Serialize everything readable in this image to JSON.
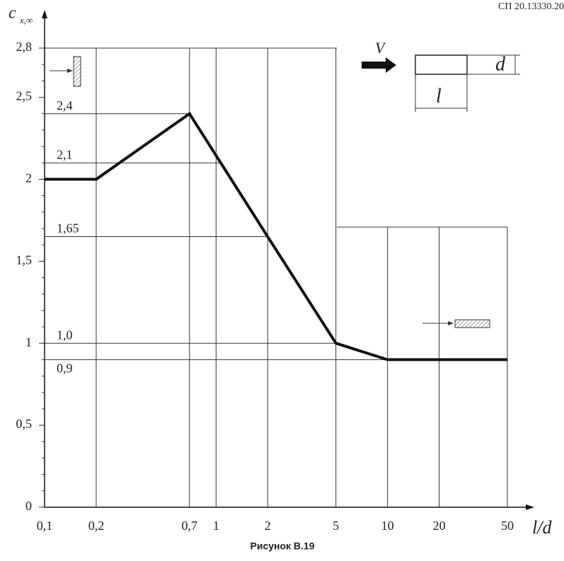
{
  "header": "СП 20.13330.20",
  "chart_data": {
    "type": "line",
    "y_label": "c",
    "y_label_sub": "x,∞",
    "x_label": "l/d",
    "caption": "Рисунок В.19",
    "x": [
      0.1,
      0.2,
      0.7,
      2,
      5,
      10,
      50
    ],
    "series": [
      {
        "color": "#111111",
        "values": [
          2,
          2,
          2.4,
          1.65,
          1.0,
          0.9,
          0.9
        ]
      }
    ],
    "xscale": "log",
    "xlim": [
      0.1,
      50
    ],
    "xticks": [
      {
        "value": 0.1,
        "label": "0,1"
      },
      {
        "value": 0.2,
        "label": "0,2"
      },
      {
        "value": 0.7,
        "label": "0,7"
      },
      1,
      2,
      5,
      10,
      20,
      50
    ],
    "ylim": [
      0,
      2.8
    ],
    "yticks": [
      0,
      {
        "value": 0.5,
        "label": "0,5"
      },
      1,
      {
        "value": 1.5,
        "label": "1,5"
      },
      2,
      {
        "value": 2.5,
        "label": "2,5"
      },
      {
        "value": 2.8,
        "label": "2,8"
      }
    ],
    "reference_lines": [
      {
        "value": 2.4,
        "label": "2,4"
      },
      {
        "value": 2.1,
        "label": "2,1"
      },
      {
        "value": 1.65,
        "label": "1,65"
      },
      {
        "value": 1.0,
        "label": "1,0"
      },
      {
        "value": 0.9,
        "label": "0,9"
      }
    ],
    "inset_labels": [
      "V",
      "d",
      "l"
    ],
    "grid": true
  }
}
